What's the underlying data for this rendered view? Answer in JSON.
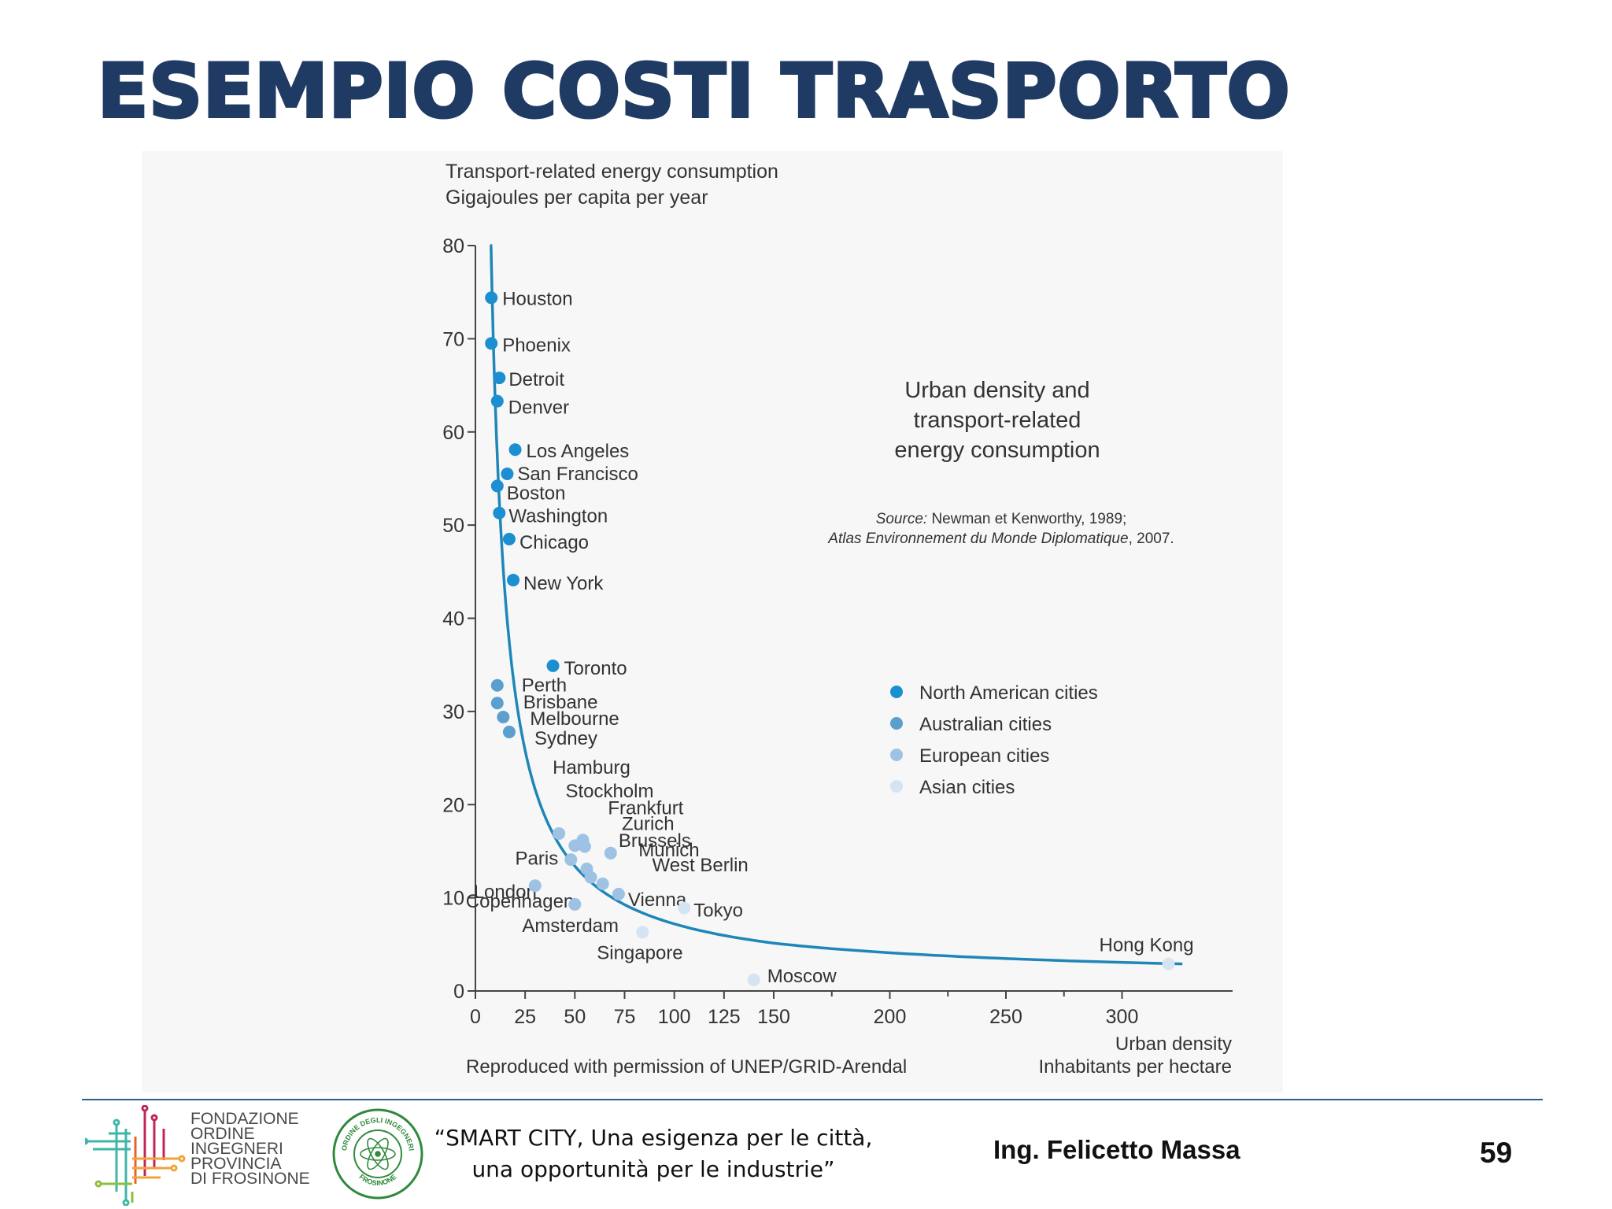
{
  "slide": {
    "title": "ESEMPIO COSTI TRASPORTO",
    "page_number": "59",
    "author": "Ing. Felicetto Massa",
    "quote_line1": "“SMART CITY, Una esigenza per le città,",
    "quote_line2": "una opportunità per le industrie”",
    "logo_text": [
      "FONDAZIONE",
      "ORDINE",
      "INGEGNERI",
      "PROVINCIA",
      "DI FROSINONE"
    ],
    "seal_text_top": "ORDINE DEGLI INGEGNERI",
    "seal_text_bottom": "FROSINONE",
    "colors": {
      "title": "#1f3b63",
      "footer_line": "#2e5d96"
    }
  },
  "chart_data": {
    "type": "scatter",
    "ylabel_line1": "Transport-related energy consumption",
    "ylabel_line2": "Gigajoules per capita per year",
    "xlabel_line1": "Urban density",
    "xlabel_line2": "Inhabitants per hectare",
    "inset_title": [
      "Urban density and",
      "transport-related",
      "energy consumption"
    ],
    "source_label": "Source:",
    "source_line1": " Newman et Kenworthy, 1989;",
    "source_line2_italic": "Atlas Environnement du Monde Diplomatique",
    "source_line2_rest": ", 2007.",
    "credit": "Reproduced with permission of UNEP/GRID-Arendal",
    "xlim": [
      0,
      330
    ],
    "ylim": [
      0,
      80
    ],
    "x_ticks": [
      0,
      25,
      50,
      75,
      100,
      125,
      150,
      200,
      250,
      300
    ],
    "y_ticks": [
      0,
      10,
      20,
      30,
      40,
      50,
      60,
      70,
      80
    ],
    "x_scale": "piecewise: 0–150 expanded, 150–330 compressed",
    "grid": false,
    "legend_position": "right",
    "series": [
      {
        "name": "North American cities",
        "color": "#1b8fd0",
        "points": [
          {
            "label": "Houston",
            "x": 8,
            "y": 74.4
          },
          {
            "label": "Phoenix",
            "x": 8,
            "y": 69.5
          },
          {
            "label": "Detroit",
            "x": 12,
            "y": 65.8
          },
          {
            "label": "Denver",
            "x": 11,
            "y": 63.3
          },
          {
            "label": "Los Angeles",
            "x": 20,
            "y": 58.1
          },
          {
            "label": "San Francisco",
            "x": 16,
            "y": 55.5
          },
          {
            "label": "Boston",
            "x": 11,
            "y": 54.2
          },
          {
            "label": "Washington",
            "x": 12,
            "y": 51.3
          },
          {
            "label": "Chicago",
            "x": 17,
            "y": 48.5
          },
          {
            "label": "New York",
            "x": 19,
            "y": 44.1
          },
          {
            "label": "Toronto",
            "x": 39,
            "y": 34.9
          }
        ]
      },
      {
        "name": "Australian cities",
        "color": "#5b9fcf",
        "points": [
          {
            "label": "Perth",
            "x": 11,
            "y": 32.8
          },
          {
            "label": "Brisbane",
            "x": 11,
            "y": 30.9
          },
          {
            "label": "Melbourne",
            "x": 14,
            "y": 29.4
          },
          {
            "label": "Sydney",
            "x": 17,
            "y": 27.8
          }
        ]
      },
      {
        "name": "European cities",
        "color": "#9dc2e3",
        "points": [
          {
            "label": "Hamburg",
            "x": 42,
            "y": 16.9
          },
          {
            "label": "Stockholm",
            "x": 54,
            "y": 16.2
          },
          {
            "label": "Frankfurt",
            "x": 50,
            "y": 15.6
          },
          {
            "label": "Zurich",
            "x": 55,
            "y": 15.5
          },
          {
            "label": "Brussels",
            "x": 68,
            "y": 14.8
          },
          {
            "label": "Munich",
            "x": 48,
            "y": 14.1
          },
          {
            "label": "West Berlin",
            "x": 56,
            "y": 13.1
          },
          {
            "label": "Paris",
            "x": 58,
            "y": 12.2
          },
          {
            "label": "London",
            "x": 64,
            "y": 11.5
          },
          {
            "label": "Vienna",
            "x": 72,
            "y": 10.4
          },
          {
            "label": "Copenhagen",
            "x": 30,
            "y": 11.3
          },
          {
            "label": "Amsterdam",
            "x": 50,
            "y": 9.3
          }
        ]
      },
      {
        "name": "Asian cities",
        "color": "#d5e4f3",
        "points": [
          {
            "label": "Tokyo",
            "x": 105,
            "y": 8.9
          },
          {
            "label": "Singapore",
            "x": 84,
            "y": 6.3
          },
          {
            "label": "Moscow",
            "x": 140,
            "y": 1.2
          },
          {
            "label": "Hong Kong",
            "x": 320,
            "y": 2.9
          }
        ]
      }
    ]
  }
}
